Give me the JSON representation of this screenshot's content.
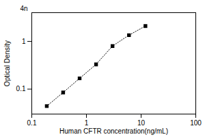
{
  "chart_data": {
    "type": "line",
    "x": [
      0.188,
      0.375,
      0.75,
      1.5,
      3.0,
      6.0,
      12.0
    ],
    "values": [
      0.044,
      0.085,
      0.168,
      0.33,
      0.8,
      1.35,
      2.1
    ],
    "xlabel": "Human CFTR concentration(ng/mL)",
    "ylabel": "Optical Density",
    "xlim": [
      0.1,
      100
    ],
    "ylim": [
      0.03,
      4
    ],
    "xticks": [
      0.1,
      1,
      10,
      100
    ],
    "yticks": [
      0.1,
      1
    ],
    "log": true,
    "grid": false,
    "color": "#000000",
    "marker": "square",
    "line_style": "dotted",
    "annotation": "4n"
  }
}
